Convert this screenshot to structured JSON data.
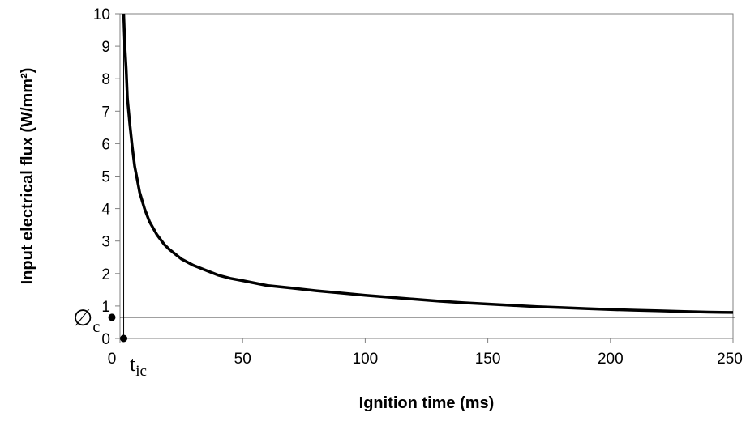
{
  "chart_data": {
    "type": "line",
    "title": "",
    "xlabel": "Ignition time (ms)",
    "ylabel": "Input electrical flux (W/mm²)",
    "xlim": [
      0,
      250
    ],
    "ylim": [
      0,
      10
    ],
    "x_ticks": [
      "0",
      "50",
      "100",
      "150",
      "200",
      "250"
    ],
    "y_ticks": [
      "0",
      "1",
      "2",
      "3",
      "4",
      "5",
      "6",
      "7",
      "8",
      "9",
      "10"
    ],
    "grid": false,
    "series": [
      {
        "x": [
          1.5,
          2,
          2.5,
          3,
          4,
          5,
          6,
          7,
          8,
          10,
          12,
          15,
          18,
          20,
          25,
          30,
          35,
          40,
          45,
          50,
          60,
          70,
          80,
          90,
          100,
          110,
          120,
          130,
          140,
          150,
          160,
          170,
          180,
          190,
          200,
          210,
          220,
          230,
          240,
          250
        ],
        "y": [
          10,
          9.0,
          8.3,
          7.4,
          6.6,
          5.9,
          5.3,
          4.9,
          4.5,
          4.0,
          3.6,
          3.2,
          2.9,
          2.75,
          2.45,
          2.25,
          2.1,
          1.95,
          1.85,
          1.78,
          1.63,
          1.55,
          1.47,
          1.4,
          1.33,
          1.27,
          1.21,
          1.15,
          1.1,
          1.06,
          1.02,
          0.98,
          0.95,
          0.92,
          0.89,
          0.87,
          0.85,
          0.83,
          0.81,
          0.8
        ]
      }
    ],
    "annotations": {
      "y_marker_symbol": "∅",
      "y_marker_sub": "c",
      "y_marker_value": 0.65,
      "x_marker_symbol": "t",
      "x_marker_sub": "ic",
      "x_marker_value": 1.5
    }
  }
}
